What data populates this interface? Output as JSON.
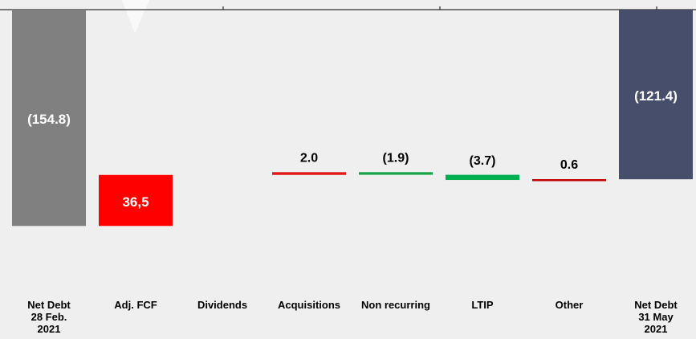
{
  "chart_data": {
    "type": "waterfall",
    "categories": [
      "Net Debt\n28 Feb.\n2021",
      "Adj. FCF",
      "Dividends",
      "Acquisitions",
      "Non recurring",
      "LTIP",
      "Other",
      "Net Debt\n31 May\n2021"
    ],
    "values": [
      -154.8,
      36.5,
      null,
      2.0,
      -1.9,
      -3.7,
      0.6,
      -121.4
    ],
    "value_labels": [
      "(154.8)",
      "36,5",
      null,
      "2.0",
      "(1.9)",
      "(3.7)",
      "0.6",
      "(121.4)"
    ],
    "measure": [
      "absolute",
      "relative",
      "relative",
      "relative",
      "relative",
      "relative",
      "relative",
      "absolute"
    ],
    "colors": [
      "#808080",
      "#ff0000",
      "#ff0000",
      "#e31a1a",
      "#17a34a",
      "#00b050",
      "#c00000",
      "#474e6b"
    ],
    "ylim": [
      -165,
      0
    ]
  }
}
